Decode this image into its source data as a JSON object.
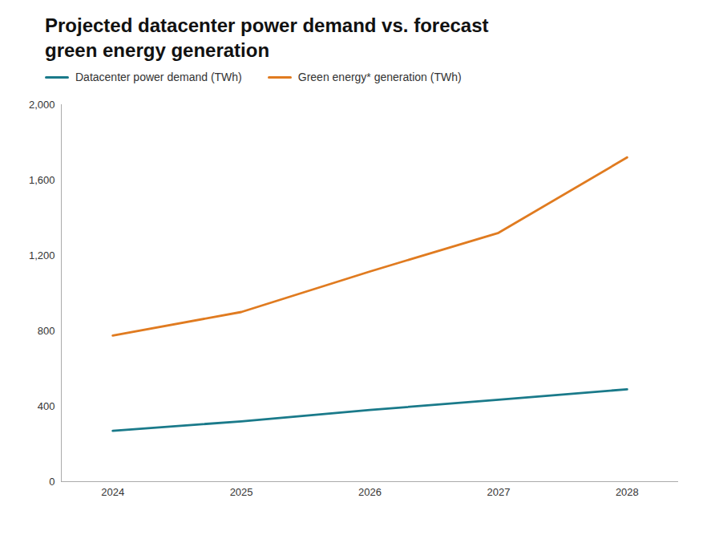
{
  "chart_data": {
    "type": "line",
    "title": "Projected datacenter power demand vs. forecast\ngreen energy generation",
    "x": [
      2024,
      2025,
      2026,
      2027,
      2028
    ],
    "series": [
      {
        "name": "Datacenter power demand (TWh)",
        "color": "#1a7a8a",
        "values": [
          270,
          320,
          380,
          435,
          490
        ]
      },
      {
        "name": "Green energy* generation (TWh)",
        "color": "#E07B20",
        "values": [
          775,
          900,
          1115,
          1320,
          1720
        ]
      }
    ],
    "xlim": [
      2023.6,
      2028.4
    ],
    "xticks": [
      2024,
      2025,
      2026,
      2027,
      2028
    ],
    "ylim": [
      0,
      2000
    ],
    "yticks": [
      0,
      400,
      800,
      {
        "value": 1200,
        "label": "1,200"
      },
      {
        "value": 1600,
        "label": "1,600"
      },
      {
        "value": 2000,
        "label": "2,000"
      }
    ],
    "grid": false,
    "legend": "upper left"
  }
}
